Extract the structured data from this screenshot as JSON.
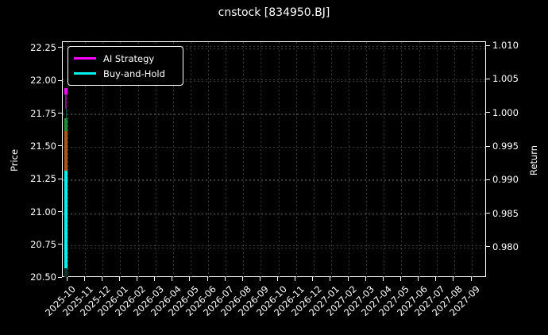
{
  "title": "cnstock [834950.BJ]",
  "axis_titles": {
    "left": "Price",
    "right": "Return"
  },
  "legend": [
    {
      "label": "AI Strategy",
      "color": "#ff00ff"
    },
    {
      "label": "Buy-and-Hold",
      "color": "#00f2ea"
    }
  ],
  "colors": {
    "background": "#000000",
    "foreground": "#ffffff",
    "grid": "#3b3b3b",
    "ai_strategy": "#ff00ff",
    "buy_and_hold": "#00f2ea",
    "up_candle": "#1e8c3a",
    "down_candle": "#a8541f"
  },
  "chart_data": {
    "type": "line",
    "title": "cnstock [834950.BJ]",
    "xlabel": "",
    "left_axis": {
      "label": "Price",
      "tick_labels": [
        "22.25",
        "22.00",
        "21.75",
        "21.50",
        "21.25",
        "21.00",
        "20.75",
        "20.50"
      ],
      "tick_values": [
        22.25,
        22.0,
        21.75,
        21.5,
        21.25,
        21.0,
        20.75,
        20.5
      ],
      "lim": [
        20.502,
        22.298
      ],
      "grid": true
    },
    "right_axis": {
      "label": "Return",
      "tick_labels": [
        "1.010",
        "1.005",
        "1.000",
        "0.995",
        "0.990",
        "0.985",
        "0.980"
      ],
      "tick_values": [
        1.01,
        1.005,
        1.0,
        0.995,
        0.99,
        0.985,
        0.98
      ],
      "lim": [
        0.9755,
        1.0106
      ],
      "grid": true
    },
    "x_axis": {
      "tick_labels": [
        "2025-10",
        "2025-11",
        "2025-12",
        "2026-01",
        "2026-02",
        "2026-03",
        "2026-04",
        "2026-05",
        "2026-06",
        "2026-07",
        "2026-08",
        "2026-09",
        "2026-10",
        "2026-11",
        "2026-12",
        "2027-01",
        "2027-02",
        "2027-03",
        "2027-04",
        "2027-05",
        "2027-06",
        "2027-07",
        "2027-08",
        "2027-09"
      ],
      "grid": true
    },
    "legend_position": "upper left",
    "series": [
      {
        "name": "AI Strategy",
        "axis": "return",
        "color": "#ff00ff",
        "note": "compressed at left edge, Oct 2025 only",
        "range": [
          1.0007,
          1.0037
        ]
      },
      {
        "name": "Buy-and-Hold",
        "axis": "return",
        "color": "#00f2ea",
        "note": "compressed at left edge, Oct 2025 only",
        "range": [
          0.9769,
          0.9915
        ]
      },
      {
        "name": "Price candles",
        "axis": "price",
        "up_color": "#1e8c3a",
        "down_color": "#a8541f",
        "note": "compressed at left edge",
        "range": [
          20.52,
          21.86
        ]
      }
    ],
    "marks": [
      {
        "name": "candle-wick",
        "axis": "price",
        "v0": 21.858,
        "v1": 20.515,
        "x0": -0.11,
        "x1": -0.065,
        "color": "#16562b"
      },
      {
        "name": "ai-strategy-tail",
        "axis": "return",
        "v0": 1.0028,
        "v1": 1.0007,
        "x0": -0.14,
        "x1": -0.05,
        "color": "#83108a"
      },
      {
        "name": "up-candle-body",
        "axis": "price",
        "v0": 21.72,
        "v1": 21.62,
        "x0": -0.2,
        "x1": -0.02,
        "color": "#1e8c3a"
      },
      {
        "name": "down-candle-body",
        "axis": "price",
        "v0": 21.62,
        "v1": 21.32,
        "x0": -0.2,
        "x1": -0.02,
        "color": "#a8541f"
      },
      {
        "name": "bottom-dark-mark",
        "axis": "price",
        "v0": 20.575,
        "v1": 20.505,
        "x0": -0.2,
        "x1": -0.02,
        "color": "#0c342c"
      },
      {
        "name": "buy-and-hold-line",
        "axis": "return",
        "v0": 0.9915,
        "v1": 0.9769,
        "x0": -0.2,
        "x1": -0.02,
        "color": "#00f2ea"
      },
      {
        "name": "ai-strategy-line",
        "axis": "return",
        "v0": 1.0037,
        "v1": 1.0028,
        "x0": -0.2,
        "x1": -0.02,
        "color": "#ff00ff"
      }
    ]
  }
}
